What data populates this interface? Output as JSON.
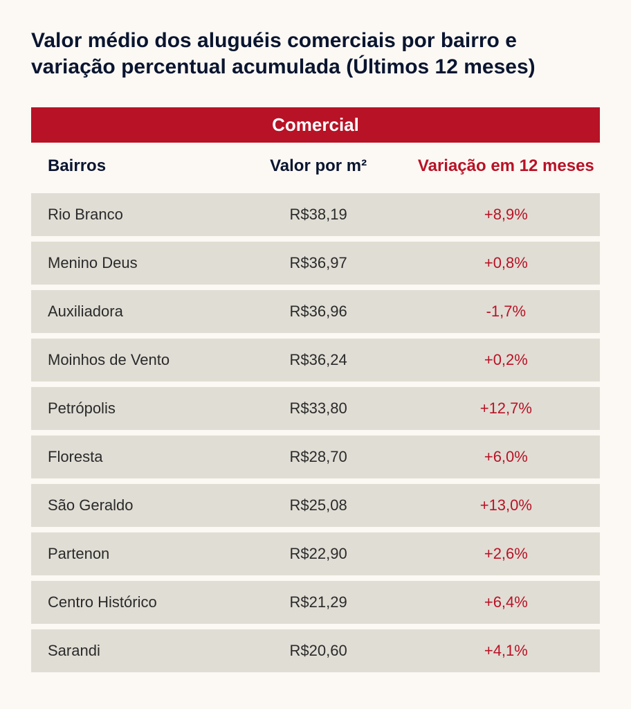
{
  "title": "Valor médio dos aluguéis comerciais por bairro e variação percentual acumulada (Últimos 12 meses)",
  "table": {
    "banner": "Comercial",
    "columns": {
      "bairros": "Bairros",
      "valor": "Valor por m²",
      "variacao": "Variação em 12 meses"
    },
    "rows": [
      {
        "bairro": "Rio Branco",
        "valor": "R$38,19",
        "variacao": "+8,9%"
      },
      {
        "bairro": "Menino Deus",
        "valor": "R$36,97",
        "variacao": "+0,8%"
      },
      {
        "bairro": "Auxiliadora",
        "valor": "R$36,96",
        "variacao": "-1,7%"
      },
      {
        "bairro": "Moinhos de Vento",
        "valor": "R$36,24",
        "variacao": "+0,2%"
      },
      {
        "bairro": "Petrópolis",
        "valor": "R$33,80",
        "variacao": "+12,7%"
      },
      {
        "bairro": "Floresta",
        "valor": "R$28,70",
        "variacao": "+6,0%"
      },
      {
        "bairro": "São Geraldo",
        "valor": "R$25,08",
        "variacao": "+13,0%"
      },
      {
        "bairro": "Partenon",
        "valor": "R$22,90",
        "variacao": "+2,6%"
      },
      {
        "bairro": "Centro Histórico",
        "valor": "R$21,29",
        "variacao": "+6,4%"
      },
      {
        "bairro": "Sarandi",
        "valor": "R$20,60",
        "variacao": "+4,1%"
      }
    ]
  },
  "styling": {
    "page_background": "#fcf9f4",
    "title_color": "#0a1530",
    "title_fontsize": 30,
    "banner_background": "#b81226",
    "banner_text_color": "#ffffff",
    "banner_fontsize": 26,
    "header_fontsize": 24,
    "header_text_color": "#0a1530",
    "header_variacao_color": "#b81226",
    "row_background": "#e0ddd4",
    "row_gap": 8,
    "cell_fontsize": 22,
    "cell_text_color": "#2a2a2a",
    "variacao_text_color": "#b81226",
    "column_widths": [
      "34%",
      "33%",
      "33%"
    ]
  }
}
